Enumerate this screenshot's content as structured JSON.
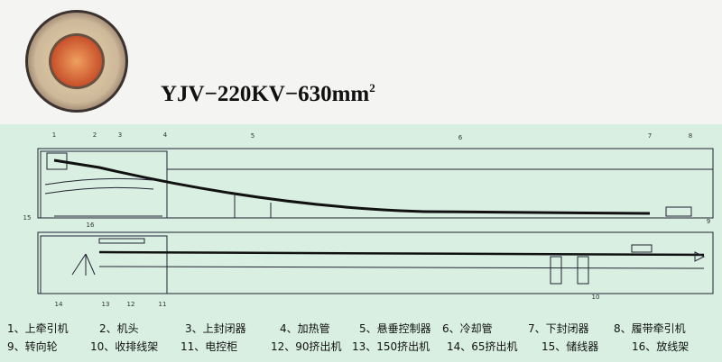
{
  "title": {
    "text": "YJV−220KV−630mm",
    "sup": "2"
  },
  "callouts": [
    "1",
    "2",
    "3",
    "4",
    "5",
    "6",
    "7",
    "8",
    "9",
    "10",
    "11",
    "12",
    "13",
    "14",
    "15",
    "16"
  ],
  "legend": [
    "1、上牵引机",
    "2、机头",
    "3、上封闭器",
    "4、加热管",
    "5、悬垂控制器",
    "6、冷却管",
    "7、下封闭器",
    "8、履带牵引机",
    "9、转向轮",
    "10、收排线架",
    "11、电控柜",
    "12、90挤出机",
    "13、150挤出机",
    "14、65挤出机",
    "15、储线器",
    "16、放线架"
  ]
}
